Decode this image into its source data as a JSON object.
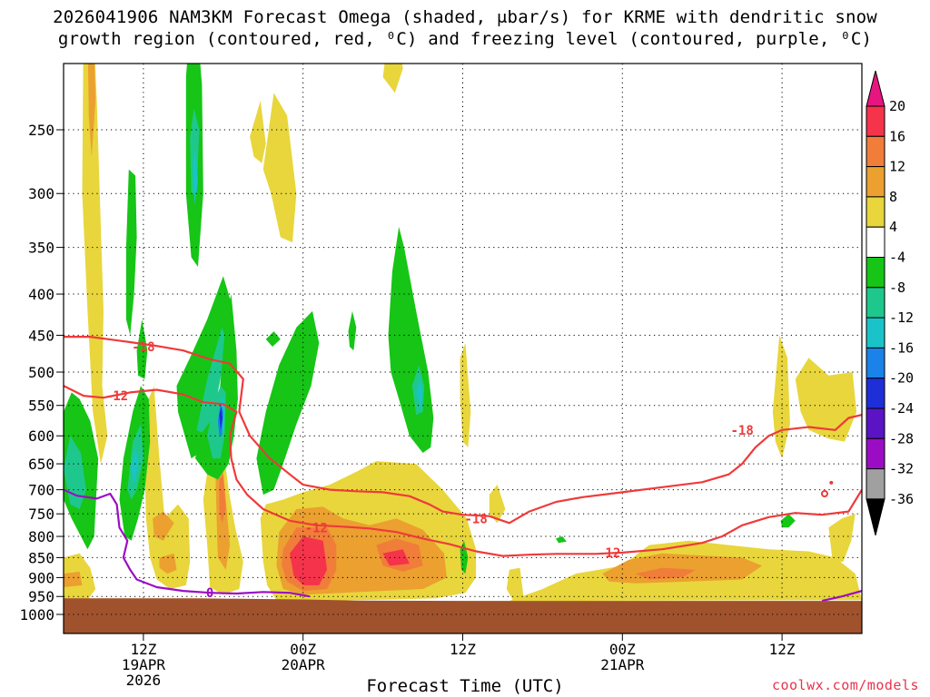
{
  "title_line1": "2026041906 NAM3KM Forecast Omega (shaded, μbar/s) for KRME with dendritic snow",
  "title_line2": "growth region (contoured, red, ⁰C) and freezing level (contoured, purple, ⁰C)",
  "xlabel": "Forecast Time (UTC)",
  "credit": "coolwx.com/models",
  "chart_data": {
    "type": "time-height cross section",
    "title": "2026041906 NAM3KM Forecast Omega (shaded, μbar/s) for KRME with dendritic snow growth region (contoured, red, ⁰C) and freezing level (contoured, purple, ⁰C)",
    "xlabel": "Forecast Time (UTC)",
    "ylabel": "",
    "y_axis": {
      "scale": "log-pressure (inverted)",
      "ticks": [
        250,
        300,
        350,
        400,
        450,
        500,
        550,
        600,
        650,
        700,
        750,
        800,
        850,
        900,
        950,
        1000
      ]
    },
    "x_axis": {
      "range_hours": [
        0,
        60
      ],
      "ticks": [
        {
          "hour": 6,
          "label": [
            "12Z",
            "19APR",
            "2026"
          ]
        },
        {
          "hour": 18,
          "label": [
            "00Z",
            "20APR"
          ]
        },
        {
          "hour": 30,
          "label": [
            "12Z"
          ]
        },
        {
          "hour": 42,
          "label": [
            "00Z",
            "21APR"
          ]
        },
        {
          "hour": 54,
          "label": [
            "12Z"
          ]
        }
      ]
    },
    "grid": true,
    "colorbar": {
      "units": "μbar/s",
      "labels": [
        "20",
        "16",
        "12",
        "8",
        "4",
        "-4",
        "-8",
        "-12",
        "-16",
        "-20",
        "-24",
        "-28",
        "-32",
        "-36"
      ],
      "bins": [
        {
          "range": "above 20",
          "color": "#e6157f"
        },
        {
          "range": "16 to 20",
          "color": "#f5334a"
        },
        {
          "range": "12 to 16",
          "color": "#f07d3a"
        },
        {
          "range": "8 to 12",
          "color": "#eba030"
        },
        {
          "range": "4 to 8",
          "color": "#e8d63c"
        },
        {
          "range": "-4 to 4",
          "color": "#ffffff"
        },
        {
          "range": "-8 to -4",
          "color": "#16c516"
        },
        {
          "range": "-12 to -8",
          "color": "#1ec88c"
        },
        {
          "range": "-16 to -12",
          "color": "#19c3c8"
        },
        {
          "range": "-20 to -16",
          "color": "#1a82e8"
        },
        {
          "range": "-24 to -20",
          "color": "#1e2fd8"
        },
        {
          "range": "-28 to -24",
          "color": "#5a14c4"
        },
        {
          "range": "-32 to -28",
          "color": "#9b0dc4"
        },
        {
          "range": "-36 to -32",
          "color": "#a0a0a0"
        },
        {
          "range": "below -36",
          "color": "#000000"
        }
      ]
    },
    "contours": [
      {
        "name": "-18",
        "color": "#ef3a3a",
        "kind": "dendritic growth region (°C)",
        "points": [
          [
            0,
            452
          ],
          [
            2,
            452
          ],
          [
            5,
            459
          ],
          [
            7,
            464
          ],
          [
            9,
            470
          ],
          [
            11,
            482
          ],
          [
            12.5,
            488
          ],
          [
            13.5,
            510
          ],
          [
            13.2,
            560
          ],
          [
            14,
            600
          ],
          [
            15.5,
            640
          ],
          [
            17,
            670
          ],
          [
            18,
            690
          ],
          [
            20,
            700
          ],
          [
            22,
            703
          ],
          [
            24,
            705
          ],
          [
            26,
            713
          ],
          [
            27.5,
            730
          ],
          [
            28.5,
            745
          ],
          [
            30,
            752
          ],
          [
            32,
            755
          ],
          [
            33.5,
            770
          ],
          [
            35,
            745
          ],
          [
            37,
            725
          ],
          [
            39,
            715
          ],
          [
            42,
            705
          ],
          [
            45,
            695
          ],
          [
            48,
            685
          ],
          [
            50,
            670
          ],
          [
            51,
            650
          ],
          [
            52,
            620
          ],
          [
            53,
            600
          ],
          [
            54,
            590
          ],
          [
            56,
            585
          ],
          [
            58,
            590
          ],
          [
            59,
            570
          ],
          [
            60,
            565
          ]
        ],
        "labels": [
          {
            "hour": 6,
            "hpa": 465,
            "text": "-18"
          },
          {
            "hour": 51,
            "hpa": 590,
            "text": "-18"
          },
          {
            "hour": 31,
            "hpa": 760,
            "text": "-18"
          }
        ]
      },
      {
        "name": "-12",
        "color": "#ef3a3a",
        "kind": "dendritic growth region (°C)",
        "points": [
          [
            0,
            520
          ],
          [
            1.5,
            535
          ],
          [
            3,
            538
          ],
          [
            5,
            530
          ],
          [
            7,
            526
          ],
          [
            9,
            533
          ],
          [
            10.5,
            545
          ],
          [
            12,
            548
          ],
          [
            13,
            560
          ],
          [
            12.5,
            600
          ],
          [
            12.6,
            640
          ],
          [
            13,
            680
          ],
          [
            13.8,
            710
          ],
          [
            15,
            740
          ],
          [
            17,
            765
          ],
          [
            19,
            775
          ],
          [
            21,
            778
          ],
          [
            23,
            782
          ],
          [
            25,
            790
          ],
          [
            27,
            805
          ],
          [
            29,
            818
          ],
          [
            31,
            835
          ],
          [
            33,
            846
          ],
          [
            35,
            843
          ],
          [
            37,
            841
          ],
          [
            40,
            841
          ],
          [
            42,
            838
          ],
          [
            45,
            830
          ],
          [
            48,
            815
          ],
          [
            49.5,
            800
          ],
          [
            51,
            775
          ],
          [
            53,
            757
          ],
          [
            55,
            748
          ],
          [
            57,
            752
          ],
          [
            59,
            745
          ],
          [
            60,
            700
          ]
        ],
        "labels": [
          {
            "hour": 4,
            "hpa": 535,
            "text": "-12"
          },
          {
            "hour": 19,
            "hpa": 780,
            "text": "-12"
          },
          {
            "hour": 41,
            "hpa": 838,
            "text": "-12"
          }
        ]
      },
      {
        "name": "0",
        "color": "#9b0dc4",
        "kind": "freezing level (°C)",
        "points": [
          [
            0,
            700
          ],
          [
            1,
            712
          ],
          [
            2.5,
            718
          ],
          [
            3.5,
            708
          ],
          [
            4,
            730
          ],
          [
            4.2,
            780
          ],
          [
            4.8,
            810
          ],
          [
            4.5,
            850
          ],
          [
            5,
            880
          ],
          [
            5.5,
            905
          ],
          [
            7,
            925
          ],
          [
            9,
            935
          ],
          [
            11,
            940
          ],
          [
            13,
            942
          ],
          [
            15,
            938
          ],
          [
            17,
            940
          ],
          [
            18.5,
            950
          ]
        ],
        "labels": [
          {
            "hour": 11,
            "hpa": 940,
            "text": "0"
          }
        ]
      },
      {
        "name": "0-right",
        "color": "#9b0dc4",
        "kind": "freezing level (°C)",
        "points": [
          [
            57,
            962
          ],
          [
            58.5,
            950
          ],
          [
            60,
            935
          ]
        ]
      }
    ]
  }
}
